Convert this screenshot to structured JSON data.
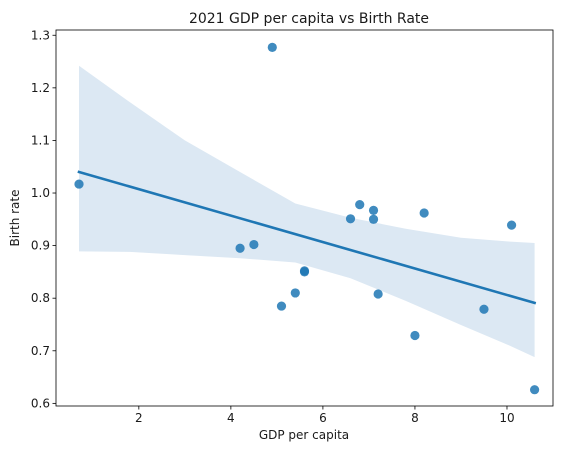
{
  "chart_data": {
    "type": "scatter",
    "title": "2021 GDP per capita vs Birth Rate",
    "xlabel": "GDP per capita",
    "ylabel": "Birth rate",
    "xlim": [
      0.2,
      11.0
    ],
    "ylim": [
      0.595,
      1.31
    ],
    "xticks": [
      2,
      4,
      6,
      8,
      10
    ],
    "yticks": [
      0.6,
      0.7,
      0.8,
      0.9,
      1.0,
      1.1,
      1.2,
      1.3
    ],
    "grid": false,
    "legend": "none",
    "points": [
      {
        "x": 0.7,
        "y": 1.017
      },
      {
        "x": 4.9,
        "y": 1.277
      },
      {
        "x": 4.2,
        "y": 0.895
      },
      {
        "x": 4.5,
        "y": 0.902
      },
      {
        "x": 5.1,
        "y": 0.785
      },
      {
        "x": 5.4,
        "y": 0.81
      },
      {
        "x": 5.6,
        "y": 0.852
      },
      {
        "x": 5.6,
        "y": 0.85
      },
      {
        "x": 6.6,
        "y": 0.951
      },
      {
        "x": 6.8,
        "y": 0.978
      },
      {
        "x": 7.1,
        "y": 0.967
      },
      {
        "x": 7.1,
        "y": 0.95
      },
      {
        "x": 7.2,
        "y": 0.808
      },
      {
        "x": 8.0,
        "y": 0.729
      },
      {
        "x": 8.2,
        "y": 0.962
      },
      {
        "x": 9.5,
        "y": 0.779
      },
      {
        "x": 10.1,
        "y": 0.939
      },
      {
        "x": 10.6,
        "y": 0.626
      }
    ],
    "regression": {
      "x": [
        0.7,
        10.6
      ],
      "y": [
        1.04,
        0.791
      ]
    },
    "confidence_band": {
      "x": [
        0.7,
        1.8,
        3.0,
        4.2,
        5.4,
        6.6,
        7.8,
        9.0,
        10.0,
        10.6
      ],
      "upper": [
        1.242,
        1.173,
        1.1,
        1.04,
        0.98,
        0.953,
        0.932,
        0.915,
        0.908,
        0.905
      ],
      "lower": [
        0.889,
        0.888,
        0.882,
        0.876,
        0.868,
        0.838,
        0.795,
        0.749,
        0.712,
        0.688
      ]
    },
    "colors": {
      "point": "#1f77b4",
      "line": "#1f77b4",
      "band": "#dce8f3"
    }
  }
}
